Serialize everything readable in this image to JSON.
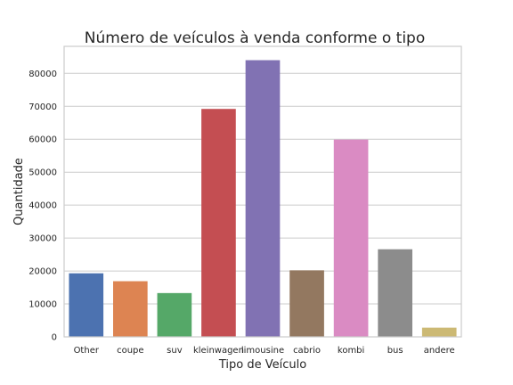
{
  "chart_data": {
    "type": "bar",
    "title": "Número de veículos à venda conforme o tipo",
    "xlabel": "Tipo de Veículo",
    "ylabel": "Quantidade",
    "categories": [
      "Other",
      "coupe",
      "suv",
      "kleinwagen",
      "limousine",
      "cabrio",
      "kombi",
      "bus",
      "andere"
    ],
    "values": [
      19300,
      16900,
      13300,
      69200,
      84000,
      20200,
      59900,
      26600,
      2800
    ],
    "colors": [
      "#4c72b0",
      "#dd8452",
      "#55a868",
      "#c44e52",
      "#8172b3",
      "#937860",
      "#da8bc3",
      "#8c8c8c",
      "#ccb974"
    ],
    "yticks": [
      0,
      10000,
      20000,
      30000,
      40000,
      50000,
      60000,
      70000,
      80000
    ],
    "ylim": [
      0,
      88200
    ],
    "grid": true
  }
}
